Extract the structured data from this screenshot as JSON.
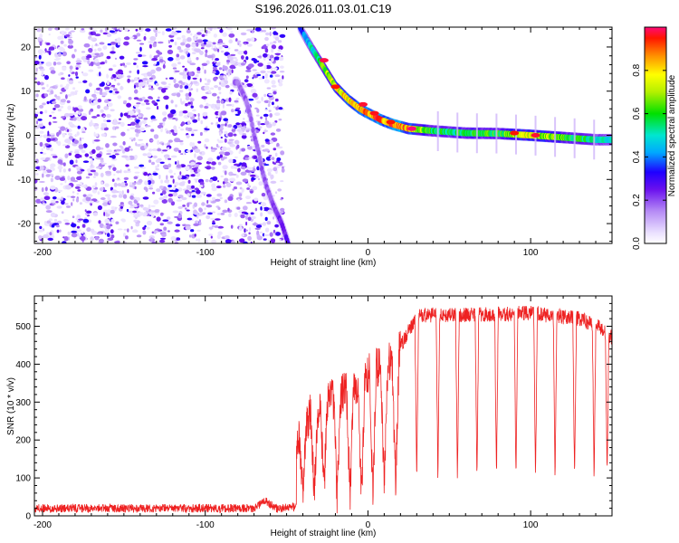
{
  "title": "S196.2026.011.03.01.C19",
  "colors": {
    "signal": "#ee2222",
    "frame": "#000000",
    "background": "#ffffff"
  },
  "chart_data": [
    {
      "type": "heatmap",
      "name": "spectrogram",
      "xlabel": "Height of straight line (km)",
      "ylabel": "Frequency (Hz)",
      "xlim": [
        -205,
        150
      ],
      "ylim": [
        -24.5,
        24.5
      ],
      "x_ticks": [
        -200,
        -100,
        0,
        100
      ],
      "y_ticks": [
        -20,
        -10,
        0,
        10,
        20
      ],
      "x_tick_labels": [
        "-200",
        "-100",
        "0",
        "100"
      ],
      "y_tick_labels": [
        "-20",
        "-10",
        "0",
        "10",
        "20"
      ],
      "noise_region": {
        "x_range": [
          -205,
          -56
        ],
        "note_level": 0.3
      },
      "ridge": {
        "description": "Doppler ridge of the signal; frequency offset versus height",
        "points": [
          {
            "x": -80,
            "y": 12
          },
          {
            "x": -75,
            "y": 8
          },
          {
            "x": -72,
            "y": 4
          },
          {
            "x": -70,
            "y": 0
          },
          {
            "x": -67,
            "y": -4
          },
          {
            "x": -65,
            "y": -8
          },
          {
            "x": -62,
            "y": -12
          },
          {
            "x": -58,
            "y": -16
          },
          {
            "x": -53,
            "y": -20
          },
          {
            "x": -49,
            "y": -24.5
          },
          {
            "x": -42,
            "y": 24.5
          },
          {
            "x": -35,
            "y": 20
          },
          {
            "x": -30,
            "y": 17
          },
          {
            "x": -25,
            "y": 14
          },
          {
            "x": -20,
            "y": 11
          },
          {
            "x": -12,
            "y": 8
          },
          {
            "x": -5,
            "y": 6
          },
          {
            "x": 0,
            "y": 5
          },
          {
            "x": 8,
            "y": 3.5
          },
          {
            "x": 15,
            "y": 2.5
          },
          {
            "x": 25,
            "y": 1.5
          },
          {
            "x": 40,
            "y": 1
          },
          {
            "x": 60,
            "y": 0.5
          },
          {
            "x": 80,
            "y": 0.4
          },
          {
            "x": 100,
            "y": 0
          },
          {
            "x": 120,
            "y": -0.5
          },
          {
            "x": 140,
            "y": -1
          },
          {
            "x": 150,
            "y": -1
          }
        ],
        "amplitude": [
          {
            "x": -80,
            "v": 0.18
          },
          {
            "x": -60,
            "v": 0.2
          },
          {
            "x": -42,
            "v": 0.3
          },
          {
            "x": -30,
            "v": 0.6
          },
          {
            "x": -20,
            "v": 0.75
          },
          {
            "x": 0,
            "v": 0.85
          },
          {
            "x": 20,
            "v": 0.9
          },
          {
            "x": 40,
            "v": 0.55
          },
          {
            "x": 80,
            "v": 0.6
          },
          {
            "x": 100,
            "v": 0.75
          },
          {
            "x": 150,
            "v": 0.45
          }
        ]
      },
      "hot_spots": [
        {
          "x": -27,
          "y": 17,
          "v": 0.98
        },
        {
          "x": -20,
          "y": 11,
          "v": 0.95
        },
        {
          "x": -3,
          "y": 7,
          "v": 0.97
        },
        {
          "x": 4,
          "y": 5,
          "v": 0.96
        },
        {
          "x": 14,
          "y": 3,
          "v": 0.95
        },
        {
          "x": 27,
          "y": 1.5,
          "v": 1.0
        },
        {
          "x": 90,
          "y": 0.5,
          "v": 0.95
        },
        {
          "x": 103,
          "y": 0,
          "v": 0.97
        }
      ],
      "colorbar": {
        "label": "Normalized spectral amplitude",
        "ticks": [
          "0.0",
          "0.2",
          "0.4",
          "0.6",
          "0.8"
        ],
        "tick_values": [
          0.0,
          0.2,
          0.4,
          0.6,
          0.8
        ],
        "range": [
          0,
          1
        ],
        "colormap_stops": [
          {
            "v": 0.0,
            "c": "#ffffff"
          },
          {
            "v": 0.05,
            "c": "#eae0ff"
          },
          {
            "v": 0.15,
            "c": "#b58af5"
          },
          {
            "v": 0.25,
            "c": "#6a10ee"
          },
          {
            "v": 0.33,
            "c": "#1f00ff"
          },
          {
            "v": 0.42,
            "c": "#00a8ff"
          },
          {
            "v": 0.5,
            "c": "#00e6d0"
          },
          {
            "v": 0.6,
            "c": "#00e000"
          },
          {
            "v": 0.7,
            "c": "#b4f000"
          },
          {
            "v": 0.78,
            "c": "#ffff00"
          },
          {
            "v": 0.87,
            "c": "#ff8c00"
          },
          {
            "v": 0.95,
            "c": "#ff1500"
          },
          {
            "v": 1.0,
            "c": "#ff0a78"
          }
        ]
      }
    },
    {
      "type": "line",
      "name": "snr",
      "xlabel": "Height of straight line (km)",
      "ylabel": "SNR (10 * v/v)",
      "xlim": [
        -205,
        150
      ],
      "ylim": [
        0,
        580
      ],
      "x_ticks": [
        -200,
        -100,
        0,
        100
      ],
      "y_ticks": [
        0,
        100,
        200,
        300,
        400,
        500
      ],
      "x_tick_labels": [
        "-200",
        "-100",
        "0",
        "100"
      ],
      "y_tick_labels": [
        "0",
        "100",
        "200",
        "300",
        "400",
        "500"
      ],
      "series": [
        {
          "name": "SNR",
          "baseline": [
            {
              "x": -205,
              "y": 20
            },
            {
              "x": -70,
              "y": 20
            },
            {
              "x": -63,
              "y": 40
            },
            {
              "x": -56,
              "y": 18
            },
            {
              "x": -44,
              "y": 25
            },
            {
              "x": -44,
              "y": 180
            },
            {
              "x": -35,
              "y": 270
            },
            {
              "x": -25,
              "y": 300
            },
            {
              "x": -12,
              "y": 330
            },
            {
              "x": 0,
              "y": 380
            },
            {
              "x": 10,
              "y": 400
            },
            {
              "x": 17,
              "y": 420
            },
            {
              "x": 24,
              "y": 480
            },
            {
              "x": 32,
              "y": 530
            },
            {
              "x": 60,
              "y": 530
            },
            {
              "x": 100,
              "y": 535
            },
            {
              "x": 130,
              "y": 520
            },
            {
              "x": 145,
              "y": 490
            },
            {
              "x": 150,
              "y": 470
            }
          ],
          "dropouts": [
            {
              "x": -40,
              "y": 50
            },
            {
              "x": -33,
              "y": 60
            },
            {
              "x": -27,
              "y": 70
            },
            {
              "x": -19,
              "y": 60
            },
            {
              "x": -11,
              "y": 50
            },
            {
              "x": -4,
              "y": 45
            },
            {
              "x": 3,
              "y": 55
            },
            {
              "x": 10,
              "y": 70
            },
            {
              "x": 17,
              "y": 80
            },
            {
              "x": 30,
              "y": 100
            },
            {
              "x": 43,
              "y": 100
            },
            {
              "x": 55,
              "y": 95
            },
            {
              "x": 67,
              "y": 100
            },
            {
              "x": 79,
              "y": 100
            },
            {
              "x": 91,
              "y": 95
            },
            {
              "x": 103,
              "y": 100
            },
            {
              "x": 115,
              "y": 100
            },
            {
              "x": 127,
              "y": 90
            },
            {
              "x": 139,
              "y": 100
            },
            {
              "x": 147,
              "y": 110
            }
          ]
        }
      ]
    }
  ]
}
